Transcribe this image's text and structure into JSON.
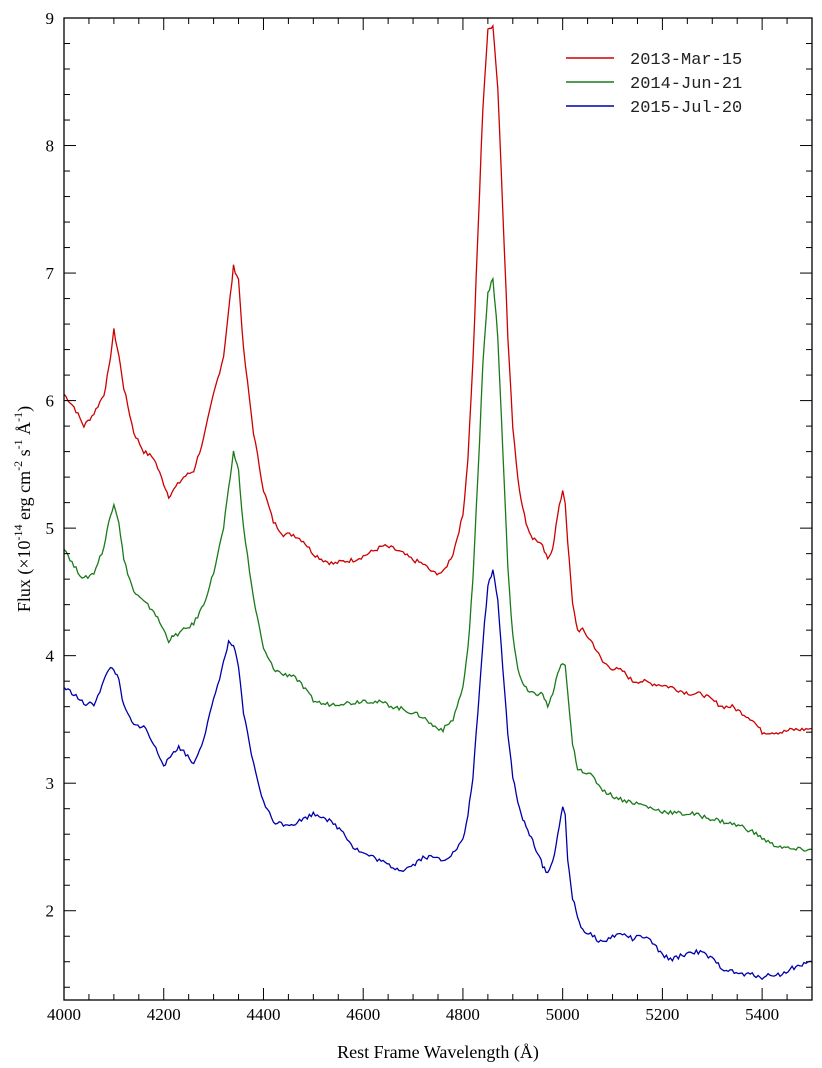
{
  "chart_data": {
    "type": "line",
    "xlabel": "Rest Frame Wavelength (Å)",
    "ylabel": {
      "pre": "Flux (×10",
      "exp1": "-14",
      "mid1": " erg cm",
      "exp2": "-2",
      "mid2": " s",
      "exp3": "-1",
      "mid3": " Å",
      "exp4": "-1",
      "post": ")"
    },
    "xlim": [
      4000,
      5500
    ],
    "ylim": [
      1.3,
      9.0
    ],
    "x_ticks": [
      4000,
      4200,
      4400,
      4600,
      4800,
      5000,
      5200,
      5400
    ],
    "y_ticks": [
      2,
      3,
      4,
      5,
      6,
      7,
      8,
      9
    ],
    "legend_position": "top-right",
    "series": [
      {
        "name": "2013-Mar-15",
        "color": "#cc0000",
        "x": [
          4000,
          4020,
          4040,
          4060,
          4080,
          4090,
          4100,
          4110,
          4120,
          4140,
          4160,
          4180,
          4200,
          4210,
          4220,
          4240,
          4260,
          4280,
          4300,
          4320,
          4330,
          4340,
          4350,
          4360,
          4380,
          4400,
          4420,
          4440,
          4460,
          4480,
          4500,
          4520,
          4540,
          4560,
          4580,
          4600,
          4620,
          4640,
          4660,
          4680,
          4700,
          4720,
          4740,
          4760,
          4780,
          4800,
          4810,
          4820,
          4830,
          4840,
          4850,
          4860,
          4870,
          4880,
          4890,
          4900,
          4910,
          4920,
          4930,
          4940,
          4950,
          4960,
          4970,
          4980,
          4990,
          5000,
          5005,
          5010,
          5020,
          5030,
          5040,
          5060,
          5080,
          5100,
          5120,
          5140,
          5160,
          5180,
          5200,
          5220,
          5240,
          5260,
          5280,
          5300,
          5320,
          5340,
          5360,
          5380,
          5400,
          5420,
          5440,
          5460,
          5480,
          5500
        ],
        "y": [
          6.05,
          5.95,
          5.8,
          5.9,
          6.05,
          6.25,
          6.55,
          6.35,
          6.1,
          5.75,
          5.6,
          5.55,
          5.35,
          5.25,
          5.3,
          5.4,
          5.45,
          5.7,
          6.05,
          6.35,
          6.7,
          7.05,
          6.95,
          6.4,
          5.75,
          5.3,
          5.05,
          4.95,
          4.95,
          4.9,
          4.8,
          4.75,
          4.72,
          4.74,
          4.75,
          4.78,
          4.82,
          4.86,
          4.84,
          4.8,
          4.75,
          4.72,
          4.65,
          4.65,
          4.8,
          5.1,
          5.55,
          6.3,
          7.3,
          8.3,
          8.9,
          8.95,
          8.45,
          7.5,
          6.5,
          5.8,
          5.4,
          5.15,
          5.0,
          4.92,
          4.9,
          4.85,
          4.75,
          4.85,
          5.1,
          5.3,
          5.2,
          4.9,
          4.4,
          4.2,
          4.2,
          4.1,
          3.95,
          3.9,
          3.88,
          3.8,
          3.8,
          3.78,
          3.77,
          3.75,
          3.72,
          3.7,
          3.7,
          3.65,
          3.6,
          3.6,
          3.55,
          3.5,
          3.4,
          3.4,
          3.4,
          3.42,
          3.42,
          3.43
        ]
      },
      {
        "name": "2014-Jun-21",
        "color": "#1a7a1a",
        "x": [
          4000,
          4020,
          4040,
          4060,
          4080,
          4090,
          4100,
          4110,
          4120,
          4140,
          4160,
          4180,
          4200,
          4210,
          4220,
          4240,
          4260,
          4280,
          4300,
          4320,
          4330,
          4340,
          4350,
          4360,
          4380,
          4400,
          4420,
          4440,
          4460,
          4480,
          4500,
          4520,
          4540,
          4560,
          4580,
          4600,
          4620,
          4640,
          4660,
          4680,
          4700,
          4720,
          4740,
          4760,
          4780,
          4800,
          4810,
          4820,
          4830,
          4840,
          4850,
          4860,
          4870,
          4880,
          4890,
          4900,
          4910,
          4920,
          4930,
          4940,
          4950,
          4960,
          4970,
          4980,
          4990,
          5000,
          5005,
          5010,
          5020,
          5030,
          5040,
          5060,
          5080,
          5100,
          5120,
          5140,
          5160,
          5180,
          5200,
          5220,
          5240,
          5260,
          5280,
          5300,
          5320,
          5340,
          5360,
          5380,
          5400,
          5420,
          5440,
          5460,
          5480,
          5500
        ],
        "y": [
          4.85,
          4.7,
          4.6,
          4.65,
          4.85,
          5.05,
          5.2,
          5.05,
          4.75,
          4.5,
          4.42,
          4.35,
          4.2,
          4.12,
          4.15,
          4.2,
          4.25,
          4.4,
          4.65,
          5.0,
          5.3,
          5.6,
          5.45,
          5.0,
          4.45,
          4.05,
          3.9,
          3.85,
          3.85,
          3.75,
          3.65,
          3.62,
          3.62,
          3.63,
          3.63,
          3.65,
          3.64,
          3.63,
          3.6,
          3.58,
          3.55,
          3.52,
          3.45,
          3.42,
          3.5,
          3.75,
          4.05,
          4.6,
          5.4,
          6.3,
          6.85,
          6.95,
          6.5,
          5.6,
          4.7,
          4.15,
          3.9,
          3.78,
          3.72,
          3.7,
          3.7,
          3.7,
          3.6,
          3.7,
          3.85,
          3.95,
          3.92,
          3.7,
          3.3,
          3.12,
          3.1,
          3.05,
          2.95,
          2.9,
          2.87,
          2.85,
          2.83,
          2.8,
          2.78,
          2.77,
          2.76,
          2.76,
          2.74,
          2.72,
          2.7,
          2.68,
          2.66,
          2.62,
          2.57,
          2.52,
          2.5,
          2.48,
          2.48,
          2.48
        ]
      },
      {
        "name": "2015-Jul-20",
        "color": "#0000aa",
        "x": [
          4000,
          4020,
          4040,
          4060,
          4080,
          4090,
          4100,
          4110,
          4120,
          4140,
          4160,
          4180,
          4200,
          4210,
          4220,
          4230,
          4240,
          4260,
          4280,
          4300,
          4320,
          4330,
          4340,
          4350,
          4360,
          4380,
          4400,
          4420,
          4440,
          4460,
          4480,
          4500,
          4520,
          4540,
          4560,
          4580,
          4600,
          4620,
          4640,
          4660,
          4680,
          4700,
          4720,
          4740,
          4760,
          4780,
          4800,
          4810,
          4820,
          4830,
          4840,
          4850,
          4860,
          4870,
          4880,
          4890,
          4900,
          4910,
          4920,
          4930,
          4940,
          4950,
          4960,
          4970,
          4980,
          4990,
          5000,
          5005,
          5010,
          5020,
          5030,
          5040,
          5060,
          5080,
          5100,
          5120,
          5140,
          5160,
          5180,
          5200,
          5220,
          5240,
          5260,
          5280,
          5300,
          5320,
          5340,
          5360,
          5380,
          5400,
          5420,
          5440,
          5460,
          5480,
          5500
        ],
        "y": [
          3.75,
          3.7,
          3.62,
          3.62,
          3.8,
          3.9,
          3.9,
          3.8,
          3.6,
          3.45,
          3.45,
          3.3,
          3.15,
          3.18,
          3.25,
          3.28,
          3.25,
          3.15,
          3.35,
          3.65,
          3.95,
          4.1,
          4.08,
          3.9,
          3.55,
          3.15,
          2.85,
          2.7,
          2.68,
          2.68,
          2.72,
          2.76,
          2.74,
          2.68,
          2.62,
          2.5,
          2.45,
          2.42,
          2.38,
          2.34,
          2.32,
          2.36,
          2.42,
          2.42,
          2.4,
          2.45,
          2.55,
          2.75,
          3.05,
          3.55,
          4.1,
          4.55,
          4.67,
          4.45,
          3.9,
          3.4,
          3.05,
          2.85,
          2.72,
          2.62,
          2.55,
          2.45,
          2.35,
          2.3,
          2.38,
          2.6,
          2.8,
          2.75,
          2.4,
          2.1,
          1.95,
          1.85,
          1.8,
          1.75,
          1.8,
          1.82,
          1.78,
          1.8,
          1.75,
          1.65,
          1.62,
          1.65,
          1.68,
          1.67,
          1.62,
          1.55,
          1.52,
          1.5,
          1.5,
          1.48,
          1.5,
          1.5,
          1.55,
          1.58,
          1.6
        ]
      }
    ]
  }
}
